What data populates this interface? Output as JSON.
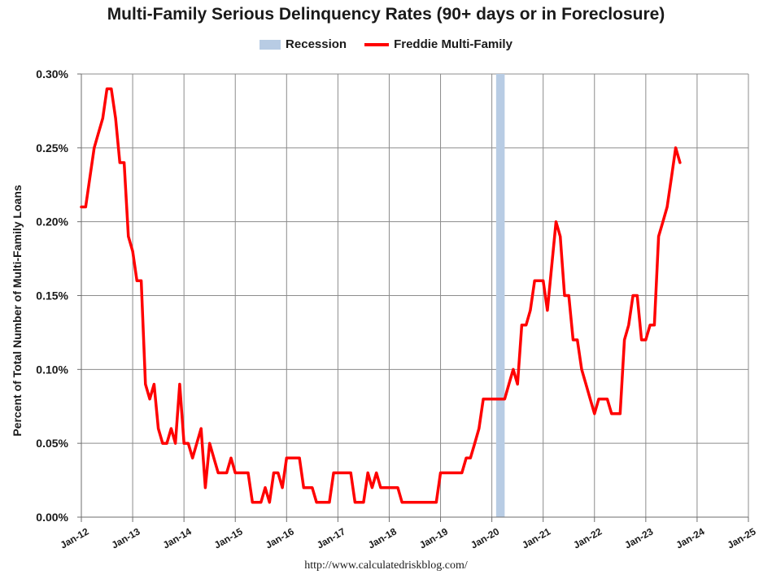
{
  "chart_data": {
    "type": "line",
    "title": "Multi-Family Serious Delinquency Rates (90+ days or in Foreclosure)",
    "ylabel": "Percent of Total Number of Multi-Family Loans",
    "xlabel": "",
    "source": "http://www.calculatedriskblog.com/",
    "ylim": [
      0,
      0.3
    ],
    "yticks": [
      "0.00%",
      "0.05%",
      "0.10%",
      "0.15%",
      "0.20%",
      "0.25%",
      "0.30%"
    ],
    "xlim": [
      "Jan-12",
      "Jan-25"
    ],
    "xticks": [
      "Jan-12",
      "Jan-13",
      "Jan-14",
      "Jan-15",
      "Jan-16",
      "Jan-17",
      "Jan-18",
      "Jan-19",
      "Jan-20",
      "Jan-21",
      "Jan-22",
      "Jan-23",
      "Jan-24",
      "Jan-25"
    ],
    "grid": true,
    "legend": "top",
    "recession": {
      "name": "Recession",
      "start": "2020-02",
      "end": "2020-04",
      "color": "#b8cce4"
    },
    "series": [
      {
        "name": "Freddie Multi-Family",
        "color": "#ff0000",
        "points": [
          [
            "2012-01",
            0.21
          ],
          [
            "2012-02",
            0.21
          ],
          [
            "2012-03",
            0.23
          ],
          [
            "2012-04",
            0.25
          ],
          [
            "2012-05",
            0.26
          ],
          [
            "2012-06",
            0.27
          ],
          [
            "2012-07",
            0.29
          ],
          [
            "2012-08",
            0.29
          ],
          [
            "2012-09",
            0.27
          ],
          [
            "2012-10",
            0.24
          ],
          [
            "2012-11",
            0.24
          ],
          [
            "2012-12",
            0.19
          ],
          [
            "2013-01",
            0.18
          ],
          [
            "2013-02",
            0.16
          ],
          [
            "2013-03",
            0.16
          ],
          [
            "2013-04",
            0.09
          ],
          [
            "2013-05",
            0.08
          ],
          [
            "2013-06",
            0.09
          ],
          [
            "2013-07",
            0.06
          ],
          [
            "2013-08",
            0.05
          ],
          [
            "2013-09",
            0.05
          ],
          [
            "2013-10",
            0.06
          ],
          [
            "2013-11",
            0.05
          ],
          [
            "2013-12",
            0.09
          ],
          [
            "2014-01",
            0.05
          ],
          [
            "2014-02",
            0.05
          ],
          [
            "2014-03",
            0.04
          ],
          [
            "2014-04",
            0.05
          ],
          [
            "2014-05",
            0.06
          ],
          [
            "2014-06",
            0.02
          ],
          [
            "2014-07",
            0.05
          ],
          [
            "2014-08",
            0.04
          ],
          [
            "2014-09",
            0.03
          ],
          [
            "2014-10",
            0.03
          ],
          [
            "2014-11",
            0.03
          ],
          [
            "2014-12",
            0.04
          ],
          [
            "2015-01",
            0.03
          ],
          [
            "2015-02",
            0.03
          ],
          [
            "2015-03",
            0.03
          ],
          [
            "2015-04",
            0.03
          ],
          [
            "2015-05",
            0.01
          ],
          [
            "2015-06",
            0.01
          ],
          [
            "2015-07",
            0.01
          ],
          [
            "2015-08",
            0.02
          ],
          [
            "2015-09",
            0.01
          ],
          [
            "2015-10",
            0.03
          ],
          [
            "2015-11",
            0.03
          ],
          [
            "2015-12",
            0.02
          ],
          [
            "2016-01",
            0.04
          ],
          [
            "2016-02",
            0.04
          ],
          [
            "2016-03",
            0.04
          ],
          [
            "2016-04",
            0.04
          ],
          [
            "2016-05",
            0.02
          ],
          [
            "2016-06",
            0.02
          ],
          [
            "2016-07",
            0.02
          ],
          [
            "2016-08",
            0.01
          ],
          [
            "2016-09",
            0.01
          ],
          [
            "2016-10",
            0.01
          ],
          [
            "2016-11",
            0.01
          ],
          [
            "2016-12",
            0.03
          ],
          [
            "2017-01",
            0.03
          ],
          [
            "2017-02",
            0.03
          ],
          [
            "2017-03",
            0.03
          ],
          [
            "2017-04",
            0.03
          ],
          [
            "2017-05",
            0.01
          ],
          [
            "2017-06",
            0.01
          ],
          [
            "2017-07",
            0.01
          ],
          [
            "2017-08",
            0.03
          ],
          [
            "2017-09",
            0.02
          ],
          [
            "2017-10",
            0.03
          ],
          [
            "2017-11",
            0.02
          ],
          [
            "2017-12",
            0.02
          ],
          [
            "2018-01",
            0.02
          ],
          [
            "2018-02",
            0.02
          ],
          [
            "2018-03",
            0.02
          ],
          [
            "2018-04",
            0.01
          ],
          [
            "2018-05",
            0.01
          ],
          [
            "2018-06",
            0.01
          ],
          [
            "2018-07",
            0.01
          ],
          [
            "2018-08",
            0.01
          ],
          [
            "2018-09",
            0.01
          ],
          [
            "2018-10",
            0.01
          ],
          [
            "2018-11",
            0.01
          ],
          [
            "2018-12",
            0.01
          ],
          [
            "2019-01",
            0.03
          ],
          [
            "2019-02",
            0.03
          ],
          [
            "2019-03",
            0.03
          ],
          [
            "2019-04",
            0.03
          ],
          [
            "2019-05",
            0.03
          ],
          [
            "2019-06",
            0.03
          ],
          [
            "2019-07",
            0.04
          ],
          [
            "2019-08",
            0.04
          ],
          [
            "2019-09",
            0.05
          ],
          [
            "2019-10",
            0.06
          ],
          [
            "2019-11",
            0.08
          ],
          [
            "2019-12",
            0.08
          ],
          [
            "2020-01",
            0.08
          ],
          [
            "2020-02",
            0.08
          ],
          [
            "2020-03",
            0.08
          ],
          [
            "2020-04",
            0.08
          ],
          [
            "2020-05",
            0.09
          ],
          [
            "2020-06",
            0.1
          ],
          [
            "2020-07",
            0.09
          ],
          [
            "2020-08",
            0.13
          ],
          [
            "2020-09",
            0.13
          ],
          [
            "2020-10",
            0.14
          ],
          [
            "2020-11",
            0.16
          ],
          [
            "2020-12",
            0.16
          ],
          [
            "2021-01",
            0.16
          ],
          [
            "2021-02",
            0.14
          ],
          [
            "2021-03",
            0.17
          ],
          [
            "2021-04",
            0.2
          ],
          [
            "2021-05",
            0.19
          ],
          [
            "2021-06",
            0.15
          ],
          [
            "2021-07",
            0.15
          ],
          [
            "2021-08",
            0.12
          ],
          [
            "2021-09",
            0.12
          ],
          [
            "2021-10",
            0.1
          ],
          [
            "2021-11",
            0.09
          ],
          [
            "2021-12",
            0.08
          ],
          [
            "2022-01",
            0.07
          ],
          [
            "2022-02",
            0.08
          ],
          [
            "2022-03",
            0.08
          ],
          [
            "2022-04",
            0.08
          ],
          [
            "2022-05",
            0.07
          ],
          [
            "2022-06",
            0.07
          ],
          [
            "2022-07",
            0.07
          ],
          [
            "2022-08",
            0.12
          ],
          [
            "2022-09",
            0.13
          ],
          [
            "2022-10",
            0.15
          ],
          [
            "2022-11",
            0.15
          ],
          [
            "2022-12",
            0.12
          ],
          [
            "2023-01",
            0.12
          ],
          [
            "2023-02",
            0.13
          ],
          [
            "2023-03",
            0.13
          ],
          [
            "2023-04",
            0.19
          ],
          [
            "2023-05",
            0.2
          ],
          [
            "2023-06",
            0.21
          ],
          [
            "2023-07",
            0.23
          ],
          [
            "2023-08",
            0.25
          ],
          [
            "2023-09",
            0.24
          ]
        ]
      }
    ]
  }
}
